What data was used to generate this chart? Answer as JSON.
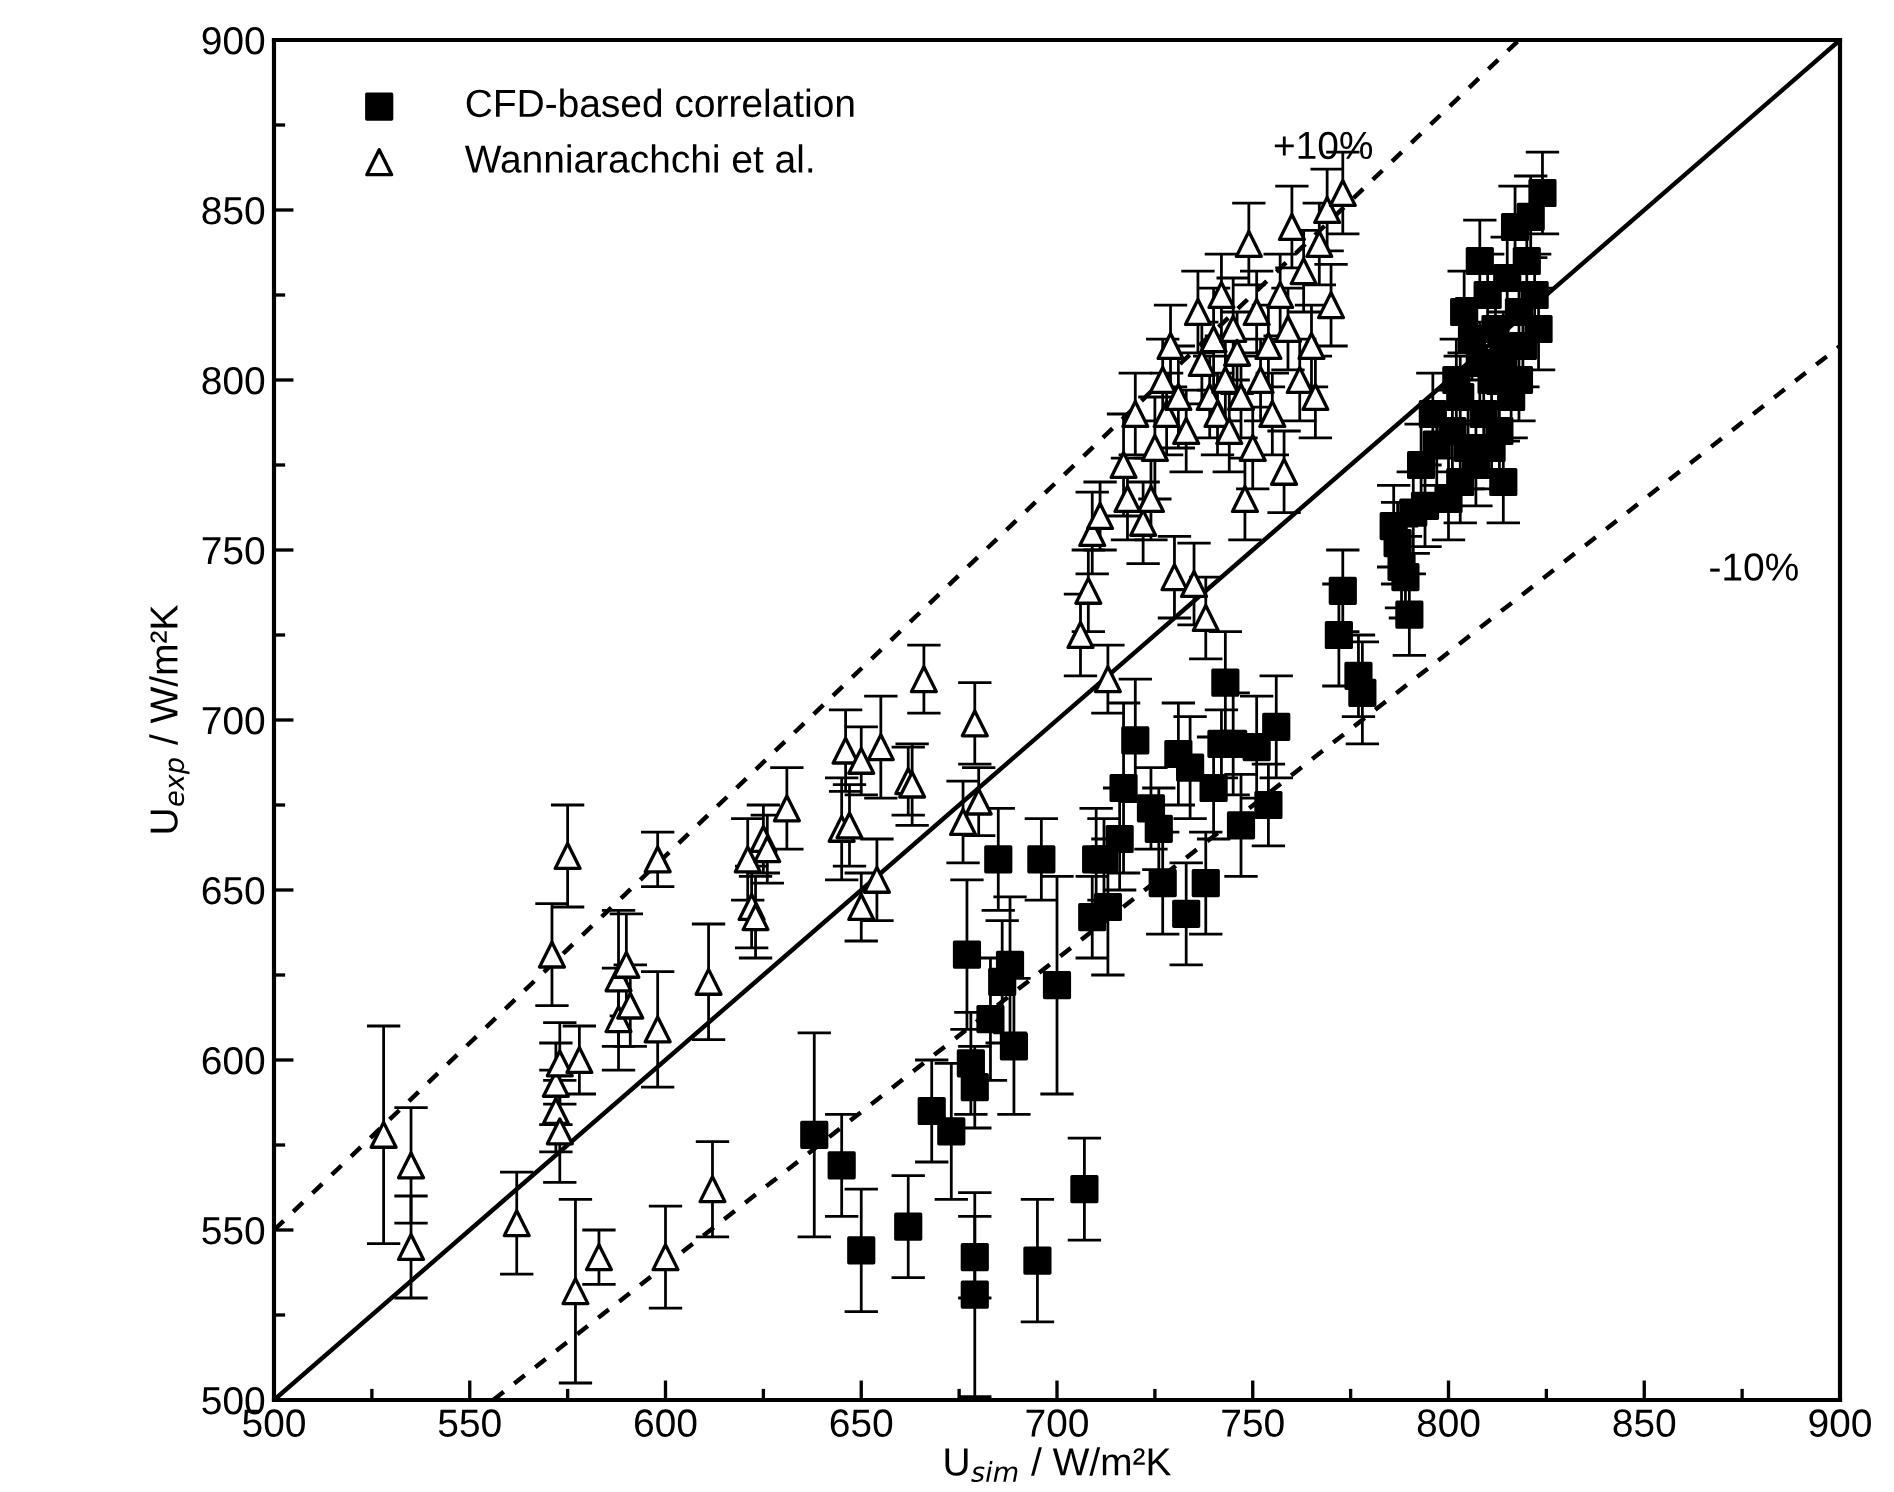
{
  "chart_data": {
    "type": "scatter",
    "xlabel": "U$_{sim}$ / W/m²K",
    "ylabel": "U$_{exp}$ / W/m²K",
    "xlim": [
      500,
      900
    ],
    "ylim": [
      500,
      900
    ],
    "xticks": [
      500,
      550,
      600,
      650,
      700,
      750,
      800,
      850,
      900
    ],
    "yticks": [
      500,
      550,
      600,
      650,
      700,
      750,
      800,
      850,
      900
    ],
    "grid": false,
    "legend": "top left",
    "annotations": [
      "+10%",
      "-10%"
    ],
    "series": [
      {
        "name": "CFD-based correlation",
        "marker": "square",
        "color": "#000000",
        "x": [
          638,
          645,
          650,
          662,
          668,
          673,
          677,
          678,
          679,
          679,
          679,
          683,
          685,
          686,
          688,
          689,
          695,
          696,
          700,
          707,
          709,
          710,
          712,
          713,
          716,
          717,
          720,
          724,
          726,
          727,
          731,
          733,
          734,
          738,
          740,
          742,
          743,
          745,
          747,
          751,
          754,
          756,
          772,
          773,
          777,
          778,
          787,
          786,
          788,
          789,
          790,
          791,
          793,
          794,
          796,
          797,
          800,
          801,
          802,
          803,
          804,
          805,
          806,
          807,
          808,
          809,
          810,
          811,
          812,
          813,
          814,
          815,
          816,
          817,
          818,
          819,
          820,
          821,
          822,
          823,
          824,
          814,
          808,
          818,
          803,
          811
        ],
        "values": [
          578,
          569,
          544,
          551,
          585,
          579,
          631,
          599,
          592,
          542,
          531,
          612,
          659,
          623,
          628,
          604,
          541,
          659,
          622,
          562,
          642,
          659,
          659,
          645,
          665,
          680,
          694,
          674,
          668,
          652,
          690,
          643,
          686,
          652,
          680,
          693,
          711,
          693,
          669,
          692,
          675,
          698,
          725,
          738,
          713,
          708,
          752,
          757,
          745,
          742,
          731,
          761,
          775,
          763,
          790,
          781,
          765,
          785,
          800,
          795,
          820,
          780,
          812,
          775,
          805,
          790,
          825,
          800,
          815,
          785,
          808,
          830,
          795,
          845,
          820,
          810,
          835,
          848,
          825,
          815,
          855,
          770,
          835,
          800,
          770,
          780
        ],
        "errors": [
          30,
          15,
          18,
          15,
          15,
          20,
          22,
          15,
          12,
          12,
          30,
          18,
          15,
          18,
          20,
          20,
          18,
          12,
          32,
          15,
          12,
          15,
          12,
          20,
          15,
          25,
          18,
          12,
          12,
          15,
          15,
          15,
          15,
          15,
          15,
          10,
          15,
          15,
          15,
          15,
          12,
          15,
          15,
          12,
          12,
          15,
          12,
          12,
          12,
          12,
          12,
          12,
          12,
          12,
          12,
          12,
          12,
          12,
          12,
          12,
          12,
          12,
          12,
          12,
          12,
          12,
          12,
          12,
          12,
          12,
          12,
          12,
          12,
          12,
          12,
          12,
          12,
          12,
          12,
          12,
          12,
          12,
          12,
          12,
          12,
          12
        ]
      },
      {
        "name": "Wanniarachchi et al.",
        "marker": "triangle",
        "color": "#000000",
        "x": [
          528,
          535,
          535,
          562,
          571,
          572,
          572,
          573,
          573,
          575,
          577,
          578,
          583,
          588,
          588,
          590,
          591,
          598,
          598,
          600,
          611,
          612,
          621,
          622,
          623,
          625,
          626,
          631,
          645,
          646,
          647,
          650,
          650,
          654,
          655,
          662,
          663,
          666,
          676,
          679,
          680,
          706,
          708,
          709,
          711,
          713,
          717,
          718,
          720,
          722,
          724,
          725,
          727,
          728,
          729,
          730,
          731,
          733,
          735,
          736,
          737,
          738,
          739,
          740,
          741,
          742,
          743,
          744,
          745,
          746,
          747,
          748,
          749,
          750,
          751,
          752,
          754,
          755,
          757,
          758,
          759,
          760,
          762,
          763,
          765,
          767,
          769,
          770,
          773,
          766
        ],
        "values": [
          578,
          569,
          545,
          552,
          631,
          593,
          585,
          599,
          579,
          660,
          532,
          600,
          542,
          612,
          624,
          628,
          616,
          659,
          609,
          542,
          623,
          562,
          659,
          645,
          642,
          665,
          662,
          674,
          668,
          691,
          669,
          688,
          645,
          653,
          692,
          682,
          681,
          712,
          670,
          699,
          676,
          725,
          738,
          755,
          760,
          712,
          775,
          765,
          790,
          758,
          765,
          780,
          800,
          790,
          810,
          742,
          795,
          785,
          740,
          820,
          805,
          730,
          795,
          812,
          790,
          825,
          800,
          785,
          815,
          808,
          795,
          765,
          840,
          780,
          820,
          800,
          810,
          790,
          825,
          773,
          815,
          845,
          800,
          832,
          810,
          840,
          850,
          822,
          855,
          795
        ],
        "errors": [
          32,
          17,
          15,
          15,
          15,
          12,
          12,
          12,
          15,
          15,
          27,
          10,
          8,
          15,
          20,
          15,
          12,
          8,
          17,
          15,
          17,
          14,
          12,
          12,
          12,
          10,
          10,
          12,
          15,
          12,
          12,
          10,
          10,
          12,
          15,
          10,
          12,
          10,
          12,
          12,
          10,
          12,
          12,
          12,
          10,
          10,
          15,
          12,
          12,
          12,
          12,
          15,
          12,
          12,
          12,
          12,
          15,
          12,
          12,
          12,
          12,
          12,
          12,
          15,
          12,
          12,
          12,
          12,
          15,
          12,
          12,
          12,
          12,
          12,
          12,
          12,
          12,
          12,
          12,
          12,
          12,
          12,
          12,
          12,
          12,
          12,
          12,
          12,
          12,
          12
        ]
      },
      {
        "type": "line",
        "line_style": "solid",
        "color": "#000000",
        "x": [
          500,
          900
        ],
        "values": [
          500,
          900
        ]
      },
      {
        "type": "line",
        "line_style": "dashed",
        "color": "#000000",
        "x": [
          500,
          818
        ],
        "values": [
          550,
          900
        ]
      },
      {
        "type": "line",
        "line_style": "dashed",
        "color": "#000000",
        "x": [
          556,
          900
        ],
        "values": [
          500,
          810
        ]
      }
    ]
  }
}
